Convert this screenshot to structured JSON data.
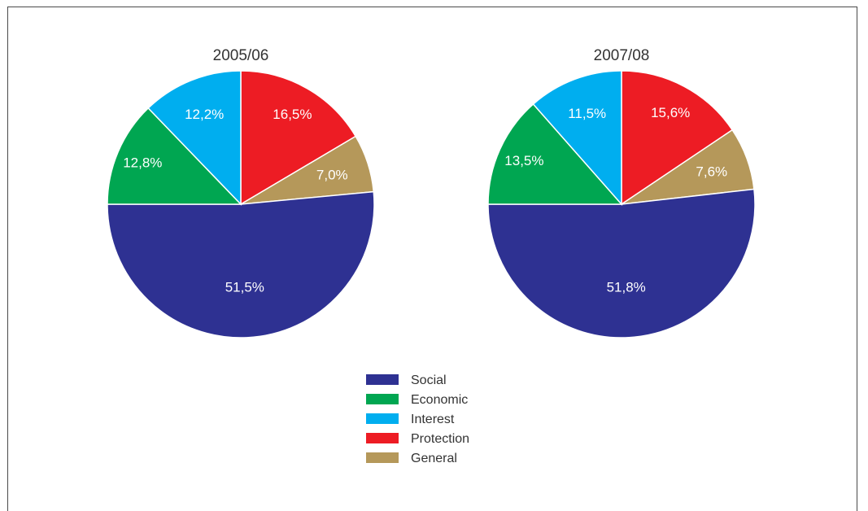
{
  "chart_data": [
    {
      "type": "pie",
      "title": "2005/06",
      "categories": [
        "Social",
        "Economic",
        "Interest",
        "Protection",
        "General"
      ],
      "values": [
        51.5,
        12.8,
        12.2,
        16.5,
        7.0
      ],
      "value_labels": [
        "51,5%",
        "12,8%",
        "12,2%",
        "16,5%",
        "7,0%"
      ],
      "legend_position": "bottom-center"
    },
    {
      "type": "pie",
      "title": "2007/08",
      "categories": [
        "Social",
        "Economic",
        "Interest",
        "Protection",
        "General"
      ],
      "values": [
        51.8,
        13.5,
        11.5,
        15.6,
        7.6
      ],
      "value_labels": [
        "51,8%",
        "13,5%",
        "11,5%",
        "15,6%",
        "7,6%"
      ],
      "legend_position": "bottom-center"
    }
  ],
  "legend": {
    "items": [
      {
        "label": "Social",
        "color": "#2e3192"
      },
      {
        "label": "Economic",
        "color": "#00a651"
      },
      {
        "label": "Interest",
        "color": "#00aeef"
      },
      {
        "label": "Protection",
        "color": "#ed1c24"
      },
      {
        "label": "General",
        "color": "#b5985a"
      }
    ]
  }
}
